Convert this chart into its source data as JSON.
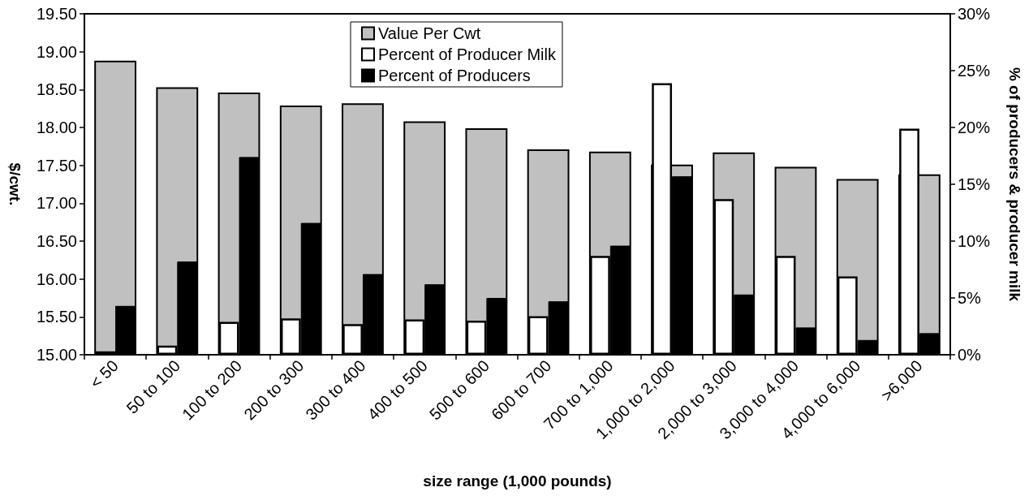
{
  "chart_data": {
    "type": "bar",
    "xlabel": "size range (1,000 pounds)",
    "ylabel": "$/cwt.",
    "y2label": "% of producers & producer milk",
    "categories": [
      "< 50",
      "50 to 100",
      "100 to 200",
      "200 to 300",
      "300 to 400",
      "400 to 500",
      "500 to 600",
      "600 to 700",
      "700 to 1,000",
      "1,000 to 2,000",
      "2,000 to 3,000",
      "3,000 to 4,000",
      "4,000 to 6,000",
      ">6,000"
    ],
    "series": [
      {
        "name": "Value Per Cwt",
        "color": "#c0c0c0",
        "values": [
          18.88,
          18.53,
          18.46,
          18.29,
          18.32,
          18.08,
          17.99,
          17.71,
          17.68,
          17.51,
          17.67,
          17.48,
          17.32,
          17.38
        ]
      },
      {
        "name": "Percent of Producer Milk",
        "color": "#ffffff",
        "axis": "y2",
        "values": [
          0.3,
          0.8,
          2.9,
          3.2,
          2.7,
          3.1,
          3.0,
          3.4,
          8.7,
          23.9,
          13.7,
          8.7,
          6.9,
          19.9
        ]
      },
      {
        "name": "Percent of Producers",
        "color": "#000000",
        "axis": "y2",
        "values": [
          4.3,
          8.2,
          17.4,
          11.6,
          7.1,
          6.2,
          5.0,
          4.7,
          9.6,
          15.7,
          5.3,
          2.4,
          1.3,
          1.9
        ]
      }
    ],
    "ylim": [
      15,
      19.5
    ],
    "yticks": [
      {
        "value": 15,
        "label": "15.00"
      },
      {
        "value": 15.5,
        "label": "15.50"
      },
      {
        "value": 16,
        "label": "16.00"
      },
      {
        "value": 16.5,
        "label": "16.50"
      },
      {
        "value": 17,
        "label": "17.00"
      },
      {
        "value": 17.5,
        "label": "17.50"
      },
      {
        "value": 18,
        "label": "18.00"
      },
      {
        "value": 18.5,
        "label": "18.50"
      },
      {
        "value": 19,
        "label": "19.00"
      },
      {
        "value": 19.5,
        "label": "19.50"
      }
    ],
    "y2lim": [
      0,
      30
    ],
    "y2ticks": [
      {
        "value": 0,
        "label": "0%"
      },
      {
        "value": 5,
        "label": "5%"
      },
      {
        "value": 10,
        "label": "10%"
      },
      {
        "value": 15,
        "label": "15%"
      },
      {
        "value": 20,
        "label": "20%"
      },
      {
        "value": 25,
        "label": "25%"
      },
      {
        "value": 30,
        "label": "30%"
      }
    ],
    "grid": false,
    "legend": "top"
  }
}
